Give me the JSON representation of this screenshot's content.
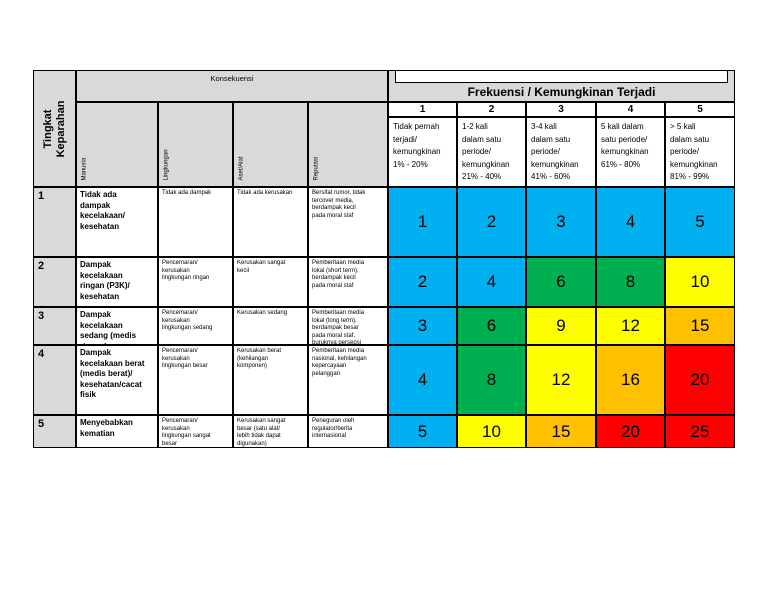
{
  "title_severity": "Tingkat\nKeparahan",
  "title_consequence": "Konsekuensi",
  "title_frequency": "Frekuensi / Kemungkinan Terjadi",
  "consequence_columns": [
    "Manusia",
    "Lingkungan",
    "Aset/Alat",
    "Reputasi"
  ],
  "frequency_levels": [
    {
      "num": "1",
      "desc": "Tidak pernah\nterjadi/\nkemungkinan\n1% - 20%"
    },
    {
      "num": "2",
      "desc": "1-2 kali\ndalam satu\nperiode/\nkemungkinan\n21% - 40%"
    },
    {
      "num": "3",
      "desc": "3-4 kali\ndalam satu\nperiode/\nkemungkinan\n41% - 60%"
    },
    {
      "num": "4",
      "desc": "5 kali dalam\nsatu periode/\nkemungkinan\n61% - 80%"
    },
    {
      "num": "5",
      "desc": "> 5 kali\ndalam satu\nperiode/\nkemungkinan\n81% - 99%"
    }
  ],
  "severity_rows": [
    {
      "num": "1",
      "manusia": "Tidak ada\ndampak\nkecelakaan/\nkesehatan",
      "lingkungan": "Tidak ada dampak",
      "aset": "Tidak ada kerusakan",
      "reputasi": "Bersifat rumor, tidak\ntercover media,\nberdampak kecil\npada moral staf"
    },
    {
      "num": "2",
      "manusia": "Dampak\nkecelakaan\nringan (P3K)/\nkesehatan",
      "lingkungan": "Pencemaran/\nkerusakan\nlingkungan ringan",
      "aset": "Kerusakan sangat\nkecil",
      "reputasi": "Pemberitaan media\nlokal (short term),\nberdampak kecil\npada moral staf"
    },
    {
      "num": "3",
      "manusia": "Dampak kecelakaan\nsedang (medis\nringan)\n/kesehatan/hilang\nhari kerja/pekerja\ndirawat",
      "lingkungan": "Pencemaran/\nkerusakan\nlingkungan sedang",
      "aset": "Kerusakan sedang",
      "reputasi": "Pemberitaan media\nlokal (long term),\nberdampak besar\npada moral staf,\nburuknya persepsi\npublik pada\nperusahaan"
    },
    {
      "num": "4",
      "manusia": "Dampak\nkecelakaan berat\n(medis berat)/\nkesehatan/cacat\nfisik",
      "lingkungan": "Pencemaran/\nkerusakan\nlingkungan besar",
      "aset": "Kerusakan berat\n(kehilangan\nkomponen)",
      "reputasi": "Pemberitaan media\nnasional, kehilangan\nkepercayaan\npelanggan"
    },
    {
      "num": "5",
      "manusia": "Menyebabkan\nkematian",
      "lingkungan": "Pencemaran/\nkerusakan\nlingkungan sangat\nbesar",
      "aset": "Kerusakan sangat\nbesar (satu alat/\nlebih tidak dapat\ndigunakan)",
      "reputasi": "Peneguran oleh\nregulator/berita\ninternasional"
    }
  ],
  "matrix_values": [
    [
      "1",
      "2",
      "3",
      "4",
      "5"
    ],
    [
      "2",
      "4",
      "6",
      "8",
      "10"
    ],
    [
      "3",
      "6",
      "9",
      "12",
      "15"
    ],
    [
      "4",
      "8",
      "12",
      "16",
      "20"
    ],
    [
      "5",
      "10",
      "15",
      "20",
      "25"
    ]
  ],
  "matrix_colors": [
    [
      "#00b0f0",
      "#00b0f0",
      "#00b0f0",
      "#00b0f0",
      "#00b0f0"
    ],
    [
      "#00b0f0",
      "#00b0f0",
      "#00b050",
      "#00b050",
      "#ffff00"
    ],
    [
      "#00b0f0",
      "#00b050",
      "#ffff00",
      "#ffff00",
      "#ffc000"
    ],
    [
      "#00b0f0",
      "#00b050",
      "#ffff00",
      "#ffc000",
      "#ff0000"
    ],
    [
      "#00b0f0",
      "#ffff00",
      "#ffc000",
      "#ff0000",
      "#ff0000"
    ]
  ],
  "colors": {
    "header_gray": "#d9d9d9",
    "level_blue": "#00b0f0",
    "level_green": "#00b050",
    "level_yellow": "#ffff00",
    "level_orange": "#ffc000",
    "level_red": "#ff0000"
  }
}
